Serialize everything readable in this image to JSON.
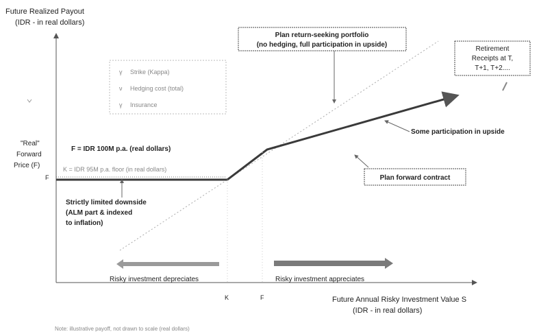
{
  "y_axis": {
    "title_line1": "Future Realized Payout",
    "title_line2": "(IDR - in real dollars)",
    "label_real": "\"Real\"",
    "label_forward": "Forward",
    "label_price": "Price (F)",
    "tick_f": "F"
  },
  "x_axis": {
    "title_line1": "Future Annual Risky Investment Value S",
    "title_line2": "(IDR - in real dollars)",
    "tick_k": "K",
    "tick_f": "F"
  },
  "legend": {
    "items": [
      "Strike (Kappa)",
      "Hedging cost (total)",
      "Insurance"
    ]
  },
  "callouts": {
    "return_seeking_line1": "Plan return-seeking portfolio",
    "return_seeking_line2": "(no hedging, full participation in upside)",
    "retirement_line1": "Retirement",
    "retirement_line2": "Receipts at T,",
    "retirement_line3": "T+1, T+2....",
    "forward_contract": "Plan forward contract",
    "some_participation": "Some participation in upside",
    "f_value": "F = IDR 100M p.a. (real dollars)",
    "k_value": "K = IDR 95M p.a. floor (in real dollars)",
    "downside_line1": "Strictly limited downside",
    "downside_line2": "(ALM part & indexed",
    "downside_line3": "to inflation)",
    "depreciates": "Risky investment depreciates",
    "appreciates": "Risky investment appreciates"
  },
  "footnote": "Note: illustrative payoff, not drawn to scale (real dollars)",
  "colors": {
    "payoff": "#3a3a3a",
    "axis": "#555555",
    "dotted": "#999999",
    "arrow_right": "#7a7a7a",
    "arrow_left": "#9a9a9a"
  }
}
